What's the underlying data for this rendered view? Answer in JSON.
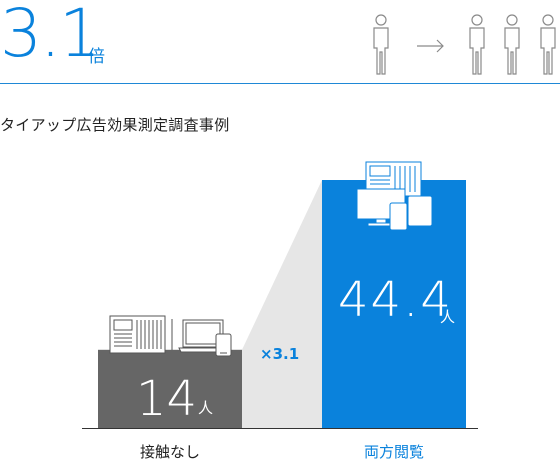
{
  "header": {
    "multiplier": "3.1",
    "multiplier_unit": "倍",
    "icons": [
      "person-icon",
      "arrow-right-icon",
      "person-icon",
      "person-icon",
      "person-icon"
    ]
  },
  "subtitle": "タイアップ広告効果測定調査事例",
  "chart_data": {
    "type": "bar",
    "title": "タイアップ広告効果測定調査事例",
    "categories": [
      "接触なし",
      "両方閲覧"
    ],
    "values": [
      14,
      44.4
    ],
    "unit": "人",
    "value_labels": [
      "14",
      "44.4"
    ],
    "ratio_label": "×3.1",
    "ylim": [
      0,
      50
    ],
    "colors": {
      "bar_none": "#666666",
      "bar_both": "#0a82dc",
      "funnel": "#e6e6e6",
      "category_both": "#0a82dc",
      "category_none": "#222222",
      "ratio": "#0a82dc"
    },
    "bar_icons": [
      [
        "newspaper-icon",
        "laptop-icon",
        "smartphone-icon"
      ],
      [
        "newspaper-icon",
        "desktop-icon",
        "smartphone-icon",
        "tablet-icon"
      ]
    ]
  }
}
